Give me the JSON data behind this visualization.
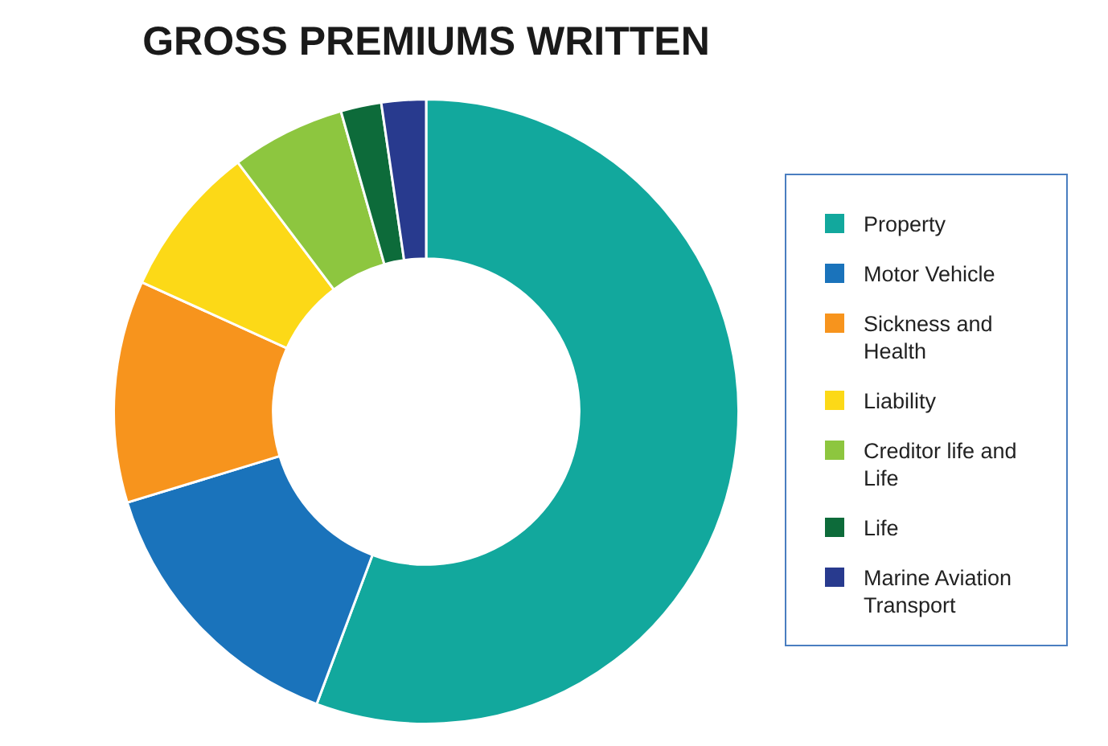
{
  "chart_data": {
    "type": "donut",
    "title": "GROSS PREMIUMS WRITTEN",
    "categories": [
      "Property",
      "Motor Vehicle",
      "Sickness and Health",
      "Liability",
      "Creditor life and Life",
      "Life",
      "Marine Aviation Transport"
    ],
    "values": [
      55.7,
      14.6,
      11.5,
      7.9,
      5.9,
      2.1,
      2.3
    ],
    "colors": [
      "#12a89d",
      "#1a73bb",
      "#f7941d",
      "#fcd917",
      "#8dc63f",
      "#0d6b3a",
      "#283a8e"
    ],
    "legend": "right"
  }
}
